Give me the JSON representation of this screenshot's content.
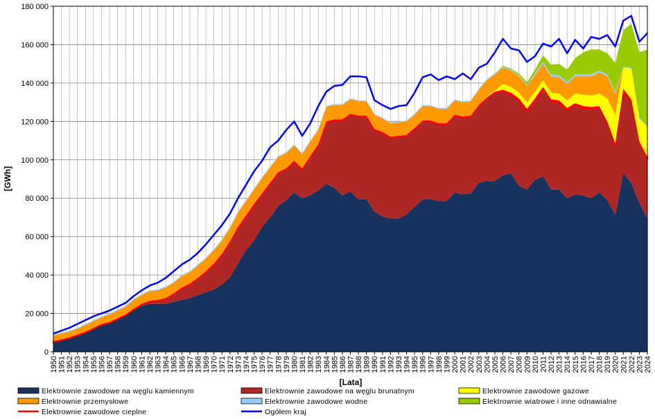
{
  "chart_data": {
    "type": "area",
    "stacked": true,
    "title": "",
    "xlabel": "[Lata]",
    "ylabel": "[GWh]",
    "ylim": [
      0,
      180000
    ],
    "yticks": [
      0,
      20000,
      40000,
      60000,
      80000,
      100000,
      120000,
      140000,
      160000,
      180000
    ],
    "ytick_labels": [
      "0",
      "20 000",
      "40 000",
      "60 000",
      "80 000",
      "100 000",
      "120 000",
      "140 000",
      "160 000",
      "180 000"
    ],
    "grid": true,
    "legend_position": "bottom",
    "x": [
      1950,
      1951,
      1952,
      1953,
      1954,
      1955,
      1956,
      1957,
      1958,
      1959,
      1960,
      1961,
      1962,
      1963,
      1964,
      1965,
      1966,
      1967,
      1968,
      1969,
      1970,
      1971,
      1972,
      1973,
      1974,
      1975,
      1976,
      1977,
      1978,
      1979,
      1980,
      1981,
      1982,
      1983,
      1984,
      1985,
      1986,
      1987,
      1988,
      1989,
      1990,
      1991,
      1992,
      1993,
      1994,
      1995,
      1996,
      1997,
      1998,
      1999,
      2000,
      2001,
      2002,
      2003,
      2004,
      2005,
      2006,
      2007,
      2008,
      2009,
      2010,
      2011,
      2012,
      2013,
      2014,
      2015,
      2016,
      2017,
      2018,
      2019,
      2020,
      2021,
      2022,
      2023,
      2024
    ],
    "series": [
      {
        "name": "Elektrownie  zawodowe na węglu kamiennym",
        "color": "#17325C",
        "kind": "area",
        "values": [
          5000,
          6000,
          7000,
          8500,
          10000,
          12000,
          14000,
          15000,
          17000,
          19000,
          21500,
          24000,
          25000,
          25000,
          25000,
          26000,
          27000,
          28000,
          29500,
          31000,
          32500,
          35000,
          39000,
          46000,
          53000,
          58000,
          65000,
          70000,
          76000,
          79000,
          83000,
          80000,
          81500,
          84000,
          87500,
          85500,
          81500,
          83500,
          79500,
          79500,
          73000,
          70500,
          69500,
          69500,
          71500,
          75500,
          79500,
          79500,
          78500,
          78500,
          83000,
          82000,
          82500,
          88000,
          89000,
          89000,
          92000,
          93000,
          86500,
          84500,
          89500,
          91500,
          84500,
          84500,
          80000,
          82000,
          81500,
          80000,
          83000,
          79000,
          71500,
          93000,
          88000,
          77500,
          69500
        ]
      },
      {
        "name": "Elektrownie  zawodowe na węglu brunatnym",
        "color": "#B02825",
        "kind": "area",
        "values": [
          0,
          0,
          0,
          0,
          0,
          0,
          0,
          0,
          0,
          0,
          500,
          500,
          1000,
          1500,
          2500,
          4000,
          6000,
          7000,
          8500,
          10500,
          13000,
          15500,
          18000,
          18500,
          17500,
          18500,
          17000,
          17500,
          17000,
          16000,
          16000,
          15000,
          20000,
          23500,
          32000,
          35000,
          39000,
          40000,
          43000,
          43000,
          42500,
          43500,
          42000,
          42500,
          41000,
          40500,
          40500,
          40500,
          40000,
          40000,
          40000,
          40000,
          40000,
          40000,
          43000,
          46000,
          43500,
          41000,
          44500,
          41000,
          41500,
          45500,
          46000,
          45500,
          46000,
          46500,
          45500,
          46500,
          44000,
          40000,
          36000,
          43000,
          42500,
          31000,
          31000
        ]
      },
      {
        "name": "Elektrownie  zawodowe cieplne",
        "color": "#FF0000",
        "kind": "area",
        "values": [
          500,
          500,
          500,
          500,
          500,
          500,
          500,
          500,
          500,
          500,
          500,
          500,
          500,
          500,
          500,
          500,
          500,
          500,
          500,
          500,
          500,
          500,
          500,
          500,
          500,
          500,
          500,
          500,
          500,
          500,
          500,
          500,
          500,
          500,
          500,
          500,
          500,
          500,
          500,
          500,
          500,
          500,
          500,
          500,
          500,
          500,
          500,
          500,
          500,
          500,
          500,
          500,
          500,
          500,
          500,
          500,
          1000,
          1000,
          1000,
          1000,
          1000,
          1000,
          1000,
          1000,
          1000,
          1000,
          1000,
          1000,
          1000,
          1000,
          1000,
          1000,
          1000,
          1000,
          1000
        ]
      },
      {
        "name": "Elektrownie  zawodowe gazowe",
        "color": "#FFFF00",
        "kind": "area",
        "values": [
          0,
          0,
          0,
          0,
          0,
          0,
          0,
          0,
          0,
          0,
          0,
          0,
          0,
          0,
          0,
          0,
          0,
          0,
          0,
          0,
          0,
          0,
          0,
          0,
          0,
          0,
          0,
          0,
          0,
          0,
          0,
          0,
          0,
          0,
          0,
          0,
          0,
          0,
          0,
          0,
          0,
          0,
          0,
          0,
          0,
          0,
          0,
          0,
          0,
          0,
          0,
          0,
          0,
          0,
          500,
          500,
          3000,
          3000,
          3000,
          3500,
          3500,
          3500,
          3500,
          3500,
          4000,
          5000,
          6000,
          6000,
          6500,
          12000,
          15000,
          11000,
          16000,
          12000,
          15500
        ]
      },
      {
        "name": "Elektrownie  przemysłowe",
        "color": "#FF9900",
        "kind": "area",
        "values": [
          3000,
          3000,
          3000,
          3000,
          3500,
          3500,
          3500,
          4000,
          4000,
          4000,
          4500,
          4500,
          5000,
          5000,
          5500,
          5500,
          6000,
          6000,
          6500,
          6500,
          7000,
          7000,
          7000,
          7500,
          7500,
          7500,
          8000,
          8000,
          8000,
          8000,
          8000,
          7500,
          7500,
          7500,
          7500,
          7500,
          7500,
          7500,
          7500,
          7500,
          7500,
          7000,
          7000,
          7000,
          7000,
          7000,
          7500,
          7500,
          7500,
          7500,
          7500,
          7500,
          7500,
          8000,
          8500,
          8500,
          8500,
          8500,
          8500,
          8500,
          8500,
          8500,
          8500,
          8500,
          8500,
          9000,
          9500,
          10000,
          11000,
          11500,
          11000,
          0,
          0,
          0,
          0
        ]
      },
      {
        "name": "Elektrownie  zawodowe wodne",
        "color": "#99CCFF",
        "kind": "area",
        "values": [
          500,
          500,
          500,
          500,
          500,
          500,
          500,
          500,
          500,
          500,
          500,
          500,
          500,
          500,
          500,
          500,
          500,
          500,
          500,
          500,
          500,
          500,
          500,
          500,
          500,
          500,
          500,
          500,
          500,
          500,
          500,
          500,
          500,
          500,
          500,
          500,
          500,
          500,
          500,
          500,
          500,
          500,
          500,
          500,
          500,
          500,
          500,
          500,
          500,
          500,
          500,
          500,
          500,
          500,
          500,
          500,
          500,
          500,
          500,
          500,
          1000,
          1000,
          1000,
          1000,
          1000,
          1000,
          1000,
          1000,
          1000,
          1000,
          1000,
          500,
          500,
          500,
          500
        ]
      },
      {
        "name": "Elektrownie  wiatrowe i inne odnawialne",
        "color": "#99CC00",
        "kind": "area",
        "values": [
          0,
          0,
          0,
          0,
          0,
          0,
          0,
          0,
          0,
          0,
          0,
          0,
          0,
          0,
          0,
          0,
          0,
          0,
          0,
          0,
          0,
          0,
          0,
          0,
          0,
          0,
          0,
          0,
          0,
          0,
          0,
          0,
          0,
          0,
          0,
          0,
          0,
          0,
          0,
          0,
          0,
          0,
          0,
          0,
          0,
          0,
          0,
          0,
          0,
          0,
          0,
          0,
          0,
          0,
          0,
          0,
          500,
          500,
          1000,
          1500,
          2000,
          3500,
          5000,
          6000,
          6500,
          8500,
          11500,
          13000,
          11000,
          11000,
          15000,
          19000,
          23000,
          34000,
          40000
        ]
      },
      {
        "name": "Ogółem   kraj",
        "color": "#0000FF",
        "kind": "line",
        "values": [
          9500,
          11000,
          12500,
          14500,
          16500,
          18500,
          20000,
          21500,
          23500,
          25500,
          29000,
          32000,
          34500,
          36000,
          38500,
          42000,
          45500,
          48000,
          51500,
          56000,
          61000,
          66000,
          72000,
          80000,
          87000,
          94000,
          99500,
          106500,
          110000,
          115500,
          120000,
          112500,
          119000,
          128000,
          135500,
          138500,
          139000,
          143500,
          143500,
          143000,
          131000,
          128500,
          126500,
          128000,
          128500,
          135000,
          143000,
          144500,
          141500,
          143500,
          142000,
          145000,
          142000,
          148000,
          150000,
          156000,
          163000,
          158000,
          157000,
          151000,
          154000,
          160500,
          159000,
          163000,
          155500,
          162500,
          158000,
          164000,
          163000,
          165000,
          159000,
          172500,
          175000,
          161500,
          166000
        ]
      }
    ]
  }
}
